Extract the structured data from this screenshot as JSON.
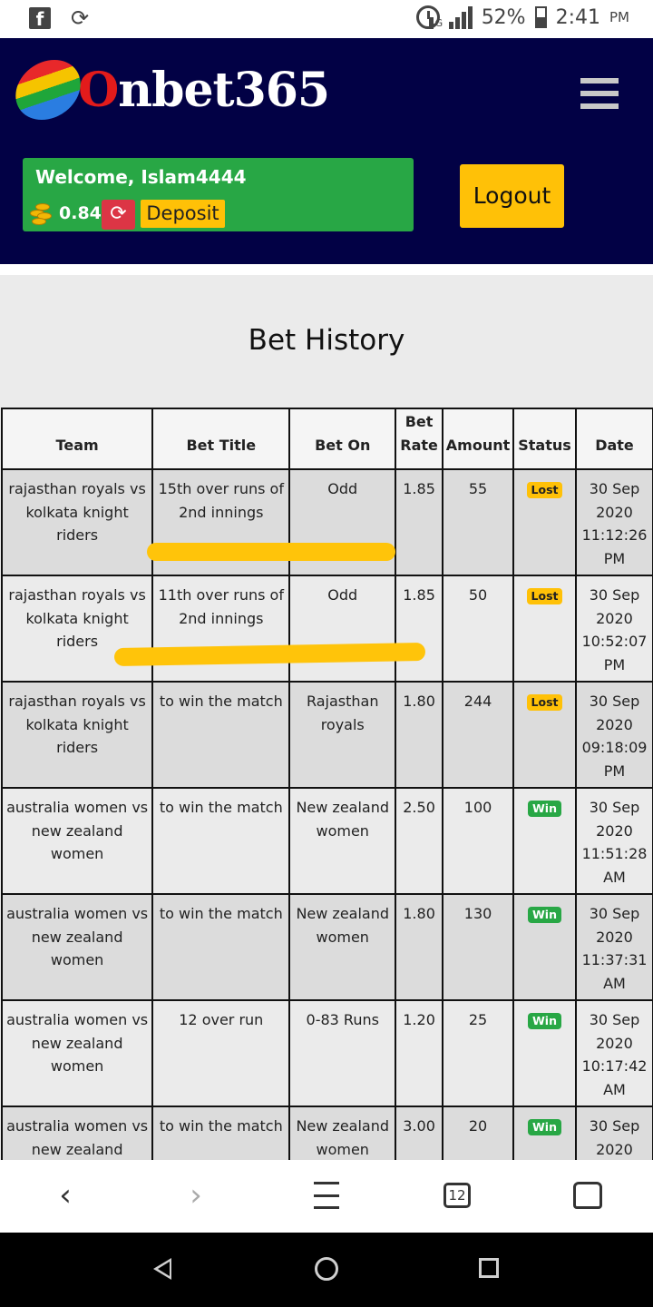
{
  "status_bar": {
    "network": "4G",
    "battery": "52%",
    "time": "2:41",
    "ampm": "PM"
  },
  "header": {
    "logo_first_letter": "O",
    "logo_rest": "nbet365",
    "welcome": "Welcome, Islam4444",
    "balance": "0.84",
    "deposit_label": "Deposit",
    "logout_label": "Logout"
  },
  "page": {
    "title": "Bet History"
  },
  "table": {
    "headers": {
      "team": "Team",
      "bet_title": "Bet Title",
      "bet_on": "Bet On",
      "bet_rate": "Bet Rate",
      "amount": "Amount",
      "status": "Status",
      "date": "Date"
    },
    "rows": [
      {
        "team": "rajasthan royals vs kolkata knight riders",
        "bet_title": "15th over runs of 2nd innings",
        "bet_on": "Odd",
        "rate": "1.85",
        "amount": "55",
        "status": "Lost",
        "date": "30 Sep 2020 11:12:26 PM"
      },
      {
        "team": "rajasthan royals vs kolkata knight riders",
        "bet_title": "11th over runs of 2nd innings",
        "bet_on": "Odd",
        "rate": "1.85",
        "amount": "50",
        "status": "Lost",
        "date": "30 Sep 2020 10:52:07 PM"
      },
      {
        "team": "rajasthan royals vs kolkata knight riders",
        "bet_title": "to win the match",
        "bet_on": "Rajasthan royals",
        "rate": "1.80",
        "amount": "244",
        "status": "Lost",
        "date": "30 Sep 2020 09:18:09 PM"
      },
      {
        "team": "australia women vs new zealand women",
        "bet_title": "to win the match",
        "bet_on": "New zealand women",
        "rate": "2.50",
        "amount": "100",
        "status": "Win",
        "date": "30 Sep 2020 11:51:28 AM"
      },
      {
        "team": "australia women vs new zealand women",
        "bet_title": "to win the match",
        "bet_on": "New zealand women",
        "rate": "1.80",
        "amount": "130",
        "status": "Win",
        "date": "30 Sep 2020 11:37:31 AM"
      },
      {
        "team": "australia women vs new zealand women",
        "bet_title": "12 over run",
        "bet_on": "0-83 Runs",
        "rate": "1.20",
        "amount": "25",
        "status": "Win",
        "date": "30 Sep 2020 10:17:42 AM"
      },
      {
        "team": "australia women vs new zealand women",
        "bet_title": "to win the match",
        "bet_on": "New zealand women",
        "rate": "3.00",
        "amount": "20",
        "status": "Win",
        "date": "30 Sep 2020"
      }
    ]
  },
  "browser_nav": {
    "tab_count": "12"
  },
  "icons": {
    "facebook": "facebook-icon",
    "sync": "sync-icon",
    "alarm": "alarm-icon",
    "signal": "signal-icon",
    "battery": "battery-icon",
    "menu": "hamburger-menu-icon",
    "coins": "coins-icon",
    "refresh": "refresh-icon"
  },
  "colors": {
    "header_bg": "#020145",
    "welcome_green": "#28a745",
    "refresh_red": "#dc3545",
    "accent_yellow": "#ffc107",
    "win_green": "#28a745",
    "content_bg": "#ebebeb"
  }
}
